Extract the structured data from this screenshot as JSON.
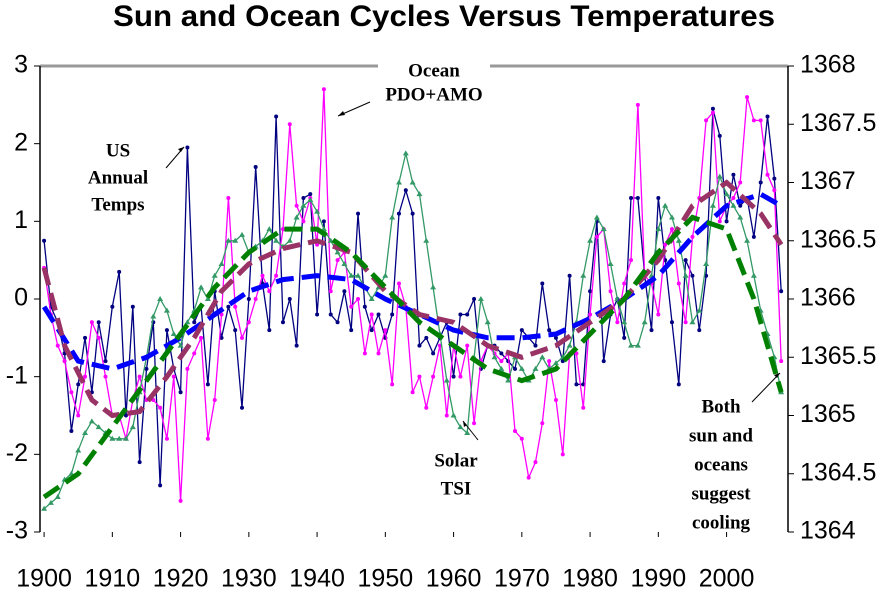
{
  "chart_data": {
    "type": "line",
    "title": "Sun and Ocean Cycles Versus Temperatures",
    "x": [
      1900,
      1901,
      1902,
      1903,
      1904,
      1905,
      1906,
      1907,
      1908,
      1909,
      1910,
      1911,
      1912,
      1913,
      1914,
      1915,
      1916,
      1917,
      1918,
      1919,
      1920,
      1921,
      1922,
      1923,
      1924,
      1925,
      1926,
      1927,
      1928,
      1929,
      1930,
      1931,
      1932,
      1933,
      1934,
      1935,
      1936,
      1937,
      1938,
      1939,
      1940,
      1941,
      1942,
      1943,
      1944,
      1945,
      1946,
      1947,
      1948,
      1949,
      1950,
      1951,
      1952,
      1953,
      1954,
      1955,
      1956,
      1957,
      1958,
      1959,
      1960,
      1961,
      1962,
      1963,
      1964,
      1965,
      1966,
      1967,
      1968,
      1969,
      1970,
      1971,
      1972,
      1973,
      1974,
      1975,
      1976,
      1977,
      1978,
      1979,
      1980,
      1981,
      1982,
      1983,
      1984,
      1985,
      1986,
      1987,
      1988,
      1989,
      1990,
      1991,
      1992,
      1993,
      1994,
      1995,
      1996,
      1997,
      1998,
      1999,
      2000,
      2001,
      2002,
      2003,
      2004,
      2005,
      2006,
      2007,
      2008
    ],
    "xlim": [
      1899.4,
      2009
    ],
    "xticks": [
      1900,
      1910,
      1920,
      1930,
      1940,
      1950,
      1960,
      1970,
      1980,
      1990,
      2000
    ],
    "ylim": [
      -3,
      3
    ],
    "yticks": [
      -3,
      -2,
      -1,
      0,
      1,
      2,
      3
    ],
    "y2lim": [
      1364,
      1368
    ],
    "y2ticks": [
      1364,
      1364.5,
      1365,
      1365.5,
      1366,
      1366.5,
      1367,
      1367.5,
      1368
    ],
    "series": [
      {
        "color": "#000080",
        "marker": "dot",
        "values": [
          0.75,
          -0.1,
          -0.3,
          -0.7,
          -1.7,
          -1.1,
          -0.5,
          -1.2,
          -0.3,
          -0.8,
          -0.1,
          0.35,
          -1.5,
          -0.1,
          -2.1,
          -0.9,
          -0.3,
          -2.4,
          -0.4,
          -0.9,
          -1.2,
          1.95,
          -0.3,
          -0.1,
          -1.1,
          0.1,
          -0.5,
          -0.1,
          -0.4,
          -1.4,
          0,
          1.7,
          0.2,
          -0.4,
          2.35,
          -0.3,
          0,
          -0.6,
          1.3,
          1.35,
          -0.2,
          1,
          -0.2,
          -0.3,
          0.1,
          -0.4,
          1.1,
          -0.1,
          -0.4,
          -0.2,
          -0.5,
          -0.2,
          1.1,
          1.4,
          1.1,
          -0.6,
          -0.5,
          -0.7,
          -0.5,
          -0.3,
          -1,
          -0.2,
          -0.2,
          0,
          -0.9,
          -0.6,
          -0.6,
          -0.7,
          -0.8,
          -0.9,
          -0.4,
          -0.5,
          -0.6,
          0.2,
          -0.4,
          -0.5,
          -0.8,
          0.3,
          -1.1,
          -1.1,
          0.1,
          1,
          -0.8,
          -0.2,
          0,
          -0.5,
          1.3,
          1.3,
          0.3,
          -0.4,
          1.3,
          0.5,
          -0.3,
          -1.1,
          0.5,
          0.3,
          -0.4,
          0.3,
          2.45,
          2.1,
          1,
          1.6,
          1.2,
          1.3,
          0.8,
          1.5,
          2.35,
          1.55,
          0.1
        ]
      },
      {
        "color": "#ff00ff",
        "marker": "dot",
        "values": [
          0.4,
          -0.2,
          -0.6,
          -0.8,
          -1.2,
          -1.5,
          -1,
          -0.3,
          -0.5,
          -1,
          -1.5,
          -1.5,
          -1.8,
          -1.3,
          -1,
          -1.3,
          -1.3,
          -1.4,
          -1.8,
          -1,
          -2.6,
          -0.9,
          -0.7,
          -0.5,
          -1.8,
          -1.3,
          -0.2,
          1.3,
          -0.1,
          -0.5,
          -0.3,
          0,
          0.3,
          0.1,
          0.3,
          0.9,
          2.25,
          1.2,
          1,
          1.3,
          0.7,
          2.7,
          0.1,
          0.5,
          0.6,
          -0.1,
          0,
          -0.7,
          -0.2,
          -0.7,
          -0.4,
          -1.1,
          0.2,
          -0.1,
          -1.2,
          -1,
          -1.4,
          -1,
          -0.6,
          -1.5,
          -0.6,
          -1,
          -0.6,
          -1.6,
          -0.8,
          -0.6,
          -0.7,
          -0.8,
          -0.7,
          -1.7,
          -1.8,
          -2.3,
          -2.1,
          -1.6,
          -0.8,
          -1.3,
          -2,
          -0.7,
          -0.7,
          -1.4,
          -0.2,
          0.8,
          0.9,
          0.1,
          -0.3,
          0.2,
          0.5,
          2.5,
          0.3,
          0.2,
          -0.2,
          0.7,
          0.9,
          0.2,
          -0.3,
          0.8,
          1.3,
          2.3,
          2.4,
          1,
          1.2,
          1.3,
          1.5,
          2.6,
          2.3,
          2.3,
          1.6,
          1.4,
          -0.8
        ]
      },
      {
        "color": "#339966",
        "marker": "triangle",
        "axis": "y2",
        "values": [
          1364.2,
          1364.25,
          1364.3,
          1364.45,
          1364.5,
          1364.7,
          1364.85,
          1364.95,
          1364.9,
          1364.85,
          1364.8,
          1364.8,
          1364.8,
          1364.9,
          1365.2,
          1365.5,
          1365.85,
          1366,
          1365.9,
          1365.7,
          1365.6,
          1365.8,
          1365.9,
          1366.1,
          1366,
          1366.2,
          1366.3,
          1366.5,
          1366.5,
          1366.55,
          1366.4,
          1366.45,
          1366.5,
          1366.6,
          1366.5,
          1366.45,
          1366.5,
          1366.7,
          1366.8,
          1366.85,
          1366.75,
          1366.6,
          1366.5,
          1366.4,
          1366.3,
          1366.2,
          1366.2,
          1366.1,
          1366,
          1366.1,
          1366.2,
          1366.7,
          1367,
          1367.25,
          1367,
          1366.9,
          1366.5,
          1366.1,
          1365.7,
          1365.3,
          1365,
          1364.9,
          1364.85,
          1365.5,
          1366,
          1365.8,
          1365.5,
          1365.4,
          1365.3,
          1365.5,
          1365.4,
          1365.3,
          1365.4,
          1365.5,
          1365.4,
          1365.45,
          1365.5,
          1365.6,
          1365.8,
          1366.2,
          1366.5,
          1366.7,
          1366.6,
          1366.3,
          1366,
          1365.8,
          1365.6,
          1365.6,
          1365.8,
          1366.2,
          1366.6,
          1366.8,
          1366.7,
          1366.5,
          1366.2,
          1365.8,
          1365.9,
          1366.3,
          1366.8,
          1367.05,
          1366.9,
          1366.8,
          1366.7,
          1366.5,
          1366.2,
          1365.9,
          1365.7,
          1365.5,
          1365.2
        ]
      },
      {
        "color": "#0000ff",
        "dashed": true,
        "x": [
          1900,
          1905,
          1910,
          1915,
          1920,
          1925,
          1930,
          1935,
          1940,
          1945,
          1950,
          1955,
          1960,
          1965,
          1970,
          1975,
          1980,
          1985,
          1990,
          1995,
          2000,
          2005,
          2008
        ],
        "values": [
          -0.1,
          -0.8,
          -0.9,
          -0.75,
          -0.5,
          -0.2,
          0.1,
          0.25,
          0.3,
          0.25,
          0,
          -0.2,
          -0.4,
          -0.5,
          -0.5,
          -0.45,
          -0.25,
          0,
          0.3,
          0.8,
          1.2,
          1.35,
          1.2
        ]
      },
      {
        "color": "#993366",
        "dashed": true,
        "x": [
          1900,
          1903,
          1907,
          1910,
          1914,
          1918,
          1922,
          1926,
          1930,
          1935,
          1940,
          1945,
          1950,
          1955,
          1960,
          1965,
          1970,
          1975,
          1980,
          1985,
          1990,
          1995,
          2000,
          2005,
          2008
        ],
        "values": [
          0.4,
          -0.6,
          -1.3,
          -1.5,
          -1.45,
          -1,
          -0.5,
          0.1,
          0.45,
          0.65,
          0.75,
          0.6,
          0.1,
          -0.2,
          -0.3,
          -0.6,
          -0.75,
          -0.6,
          -0.3,
          0,
          0.5,
          1.2,
          1.5,
          1.1,
          0.7
        ]
      },
      {
        "color": "#008000",
        "dashed": true,
        "axis": "y2",
        "x": [
          1900,
          1905,
          1910,
          1915,
          1920,
          1925,
          1930,
          1935,
          1940,
          1945,
          1950,
          1955,
          1960,
          1965,
          1970,
          1975,
          1980,
          1985,
          1990,
          1995,
          2000,
          2004,
          2008
        ],
        "values": [
          1364.3,
          1364.5,
          1364.9,
          1365.3,
          1365.7,
          1366.1,
          1366.4,
          1366.6,
          1366.6,
          1366.4,
          1366.1,
          1365.8,
          1365.6,
          1365.4,
          1365.3,
          1365.4,
          1365.7,
          1366,
          1366.4,
          1366.7,
          1366.6,
          1366,
          1365.2
        ]
      }
    ],
    "annotations": [
      {
        "lines": [
          "US",
          "Annual",
          "Temps"
        ]
      },
      {
        "lines": [
          "Ocean",
          "PDO+AMO"
        ]
      },
      {
        "lines": [
          "Solar",
          "TSI"
        ]
      },
      {
        "lines": [
          "Both",
          "sun and",
          "oceans",
          "suggest",
          "cooling"
        ]
      }
    ]
  }
}
